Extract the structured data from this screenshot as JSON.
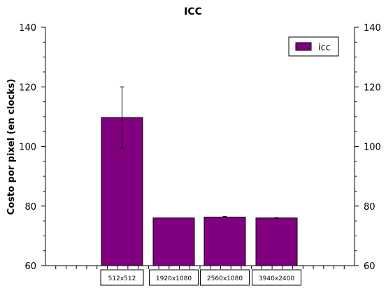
{
  "chart_data": {
    "type": "bar",
    "title": "ICC",
    "ylabel": "Costo por pixel (en clocks)",
    "xlabel": "",
    "categories": [
      "512x512",
      "1920x1080",
      "2560x1080",
      "3940x2400"
    ],
    "series": [
      {
        "name": "icc",
        "values": [
          109.7,
          76.0,
          76.3,
          76.0
        ],
        "errors": [
          10.3,
          0.0,
          0.2,
          0.1
        ]
      }
    ],
    "ylim": [
      60,
      140
    ],
    "yticks": [
      "60",
      "80",
      "100",
      "120",
      "140"
    ],
    "legend_position": "top-right",
    "grid": false,
    "colors": {
      "bar": "#800080",
      "axis": "#000000"
    }
  }
}
